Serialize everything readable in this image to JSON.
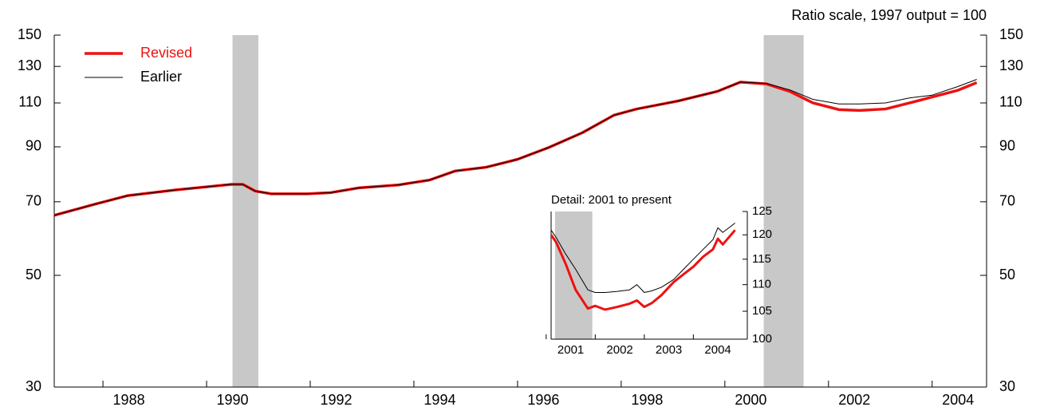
{
  "chart_data": [
    {
      "type": "line",
      "subtitle": "Ratio scale, 1997 output = 100",
      "x": [
        1987.06,
        1987.86,
        1988.48,
        1989.4,
        1990.48,
        1990.7,
        1990.94,
        1991.25,
        1991.94,
        1992.4,
        1992.94,
        1993.7,
        1994.3,
        1994.8,
        1995.4,
        1996.0,
        1996.6,
        1997.25,
        1997.86,
        1998.3,
        1999.1,
        1999.86,
        2000.3,
        2000.8,
        2001.25,
        2001.7,
        2002.2,
        2002.6,
        2003.1,
        2003.55,
        2004.0,
        2004.5,
        2004.86
      ],
      "series": [
        {
          "name": "Revised",
          "color": "#ee1111",
          "width": 3.5,
          "values": [
            65.8,
            69.3,
            72,
            73.9,
            75.8,
            75.8,
            73.5,
            72.6,
            72.6,
            73,
            74.6,
            75.6,
            77.3,
            80.6,
            82,
            85,
            89.7,
            96,
            104,
            107,
            111,
            116,
            121,
            120,
            116,
            110,
            106.7,
            106.3,
            107,
            109.9,
            113,
            116.6,
            120.7
          ]
        },
        {
          "name": "Earlier",
          "color": "#000000",
          "width": 1,
          "values": [
            65.8,
            69.3,
            72,
            73.9,
            75.8,
            75.8,
            73.5,
            72.6,
            72.6,
            73,
            74.6,
            75.6,
            77.3,
            80.6,
            82,
            85,
            89.7,
            96,
            104,
            107,
            111,
            116,
            121,
            120.3,
            116.8,
            111.8,
            109.5,
            109.5,
            110,
            112.5,
            114,
            118.6,
            122.5
          ]
        }
      ],
      "shaded_periods": [
        [
          1990.5,
          1991.0
        ],
        [
          2000.75,
          2001.52
        ]
      ],
      "xlim": [
        1987.06,
        2005.05
      ],
      "xticks": [
        1988,
        1990,
        1992,
        1994,
        1996,
        1998,
        2000,
        2002,
        2004
      ],
      "ylim": [
        30,
        150
      ],
      "yticks": [
        30,
        50,
        70,
        90,
        110,
        130,
        150
      ],
      "log_y": true,
      "legend": "upper left"
    },
    {
      "type": "line",
      "title": "Detail: 2001 to present",
      "x": [
        2001.1,
        2001.2,
        2001.4,
        2001.6,
        2001.85,
        2002.0,
        2002.2,
        2002.45,
        2002.7,
        2002.85,
        2003.0,
        2003.15,
        2003.35,
        2003.6,
        2003.8,
        2004.0,
        2004.2,
        2004.4,
        2004.5,
        2004.6,
        2004.85
      ],
      "series": [
        {
          "name": "Revised",
          "color": "#ee1111",
          "width": 3,
          "values": [
            120,
            118.5,
            114,
            109,
            105.5,
            106,
            105.3,
            105.8,
            106.4,
            107,
            105.8,
            106.5,
            108,
            110.5,
            112,
            113.5,
            115.5,
            117,
            119.2,
            118,
            121
          ]
        },
        {
          "name": "Earlier",
          "color": "#000000",
          "width": 1,
          "values": [
            121,
            119.5,
            116,
            113,
            109,
            108.5,
            108.5,
            108.7,
            109,
            110,
            108.5,
            108.8,
            109.5,
            111,
            113,
            115,
            117,
            119,
            121.5,
            120.5,
            122.5
          ]
        }
      ],
      "shaded_periods": [
        [
          2001.18,
          2001.94
        ]
      ],
      "xlim": [
        2001.1,
        2005.1
      ],
      "xticks": [
        2001,
        2002,
        2003,
        2004
      ],
      "ylim": [
        100,
        125
      ],
      "yticks": [
        100,
        105,
        110,
        115,
        120,
        125
      ],
      "log_y": true
    }
  ]
}
